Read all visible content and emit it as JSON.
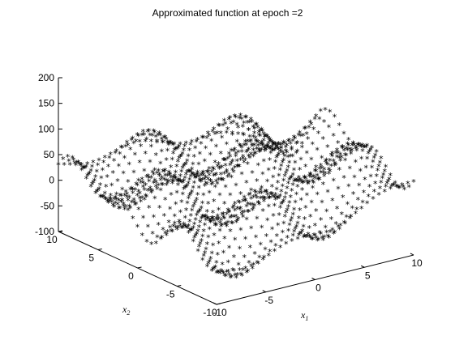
{
  "title": "Approximated function at epoch =2",
  "chart_data": {
    "type": "scatter",
    "subtype": "3d-surface-markers",
    "title": "Approximated function at epoch =2",
    "marker": "*",
    "marker_color": "#000000",
    "xlabel": "x",
    "xlabel_sub": "1",
    "ylabel": "x",
    "ylabel_sub": "2",
    "zlabel": "",
    "xlim": [
      -10,
      10
    ],
    "ylim": [
      -10,
      10
    ],
    "zlim": [
      -100,
      200
    ],
    "x_ticks": [
      "-10",
      "-5",
      "0",
      "5",
      "10"
    ],
    "y_ticks": [
      "-10",
      "-5",
      "0",
      "5",
      "10"
    ],
    "z_ticks": [
      "-100",
      "-50",
      "0",
      "50",
      "100",
      "150",
      "200"
    ],
    "grid": false,
    "surface_samples": [
      {
        "x1": -10,
        "x2": 10,
        "z": 25
      },
      {
        "x1": -10,
        "x2": 0,
        "z": 10
      },
      {
        "x1": -10,
        "x2": -5,
        "z": 105
      },
      {
        "x1": -10,
        "x2": -10,
        "z": -60
      },
      {
        "x1": 0,
        "x2": 10,
        "z": 30
      },
      {
        "x1": 0,
        "x2": 0,
        "z": 20
      },
      {
        "x1": 0,
        "x2": -10,
        "z": -10
      },
      {
        "x1": 10,
        "x2": 10,
        "z": -30
      },
      {
        "x1": 10,
        "x2": 0,
        "z": 120
      },
      {
        "x1": 10,
        "x2": -10,
        "z": 95
      }
    ]
  }
}
